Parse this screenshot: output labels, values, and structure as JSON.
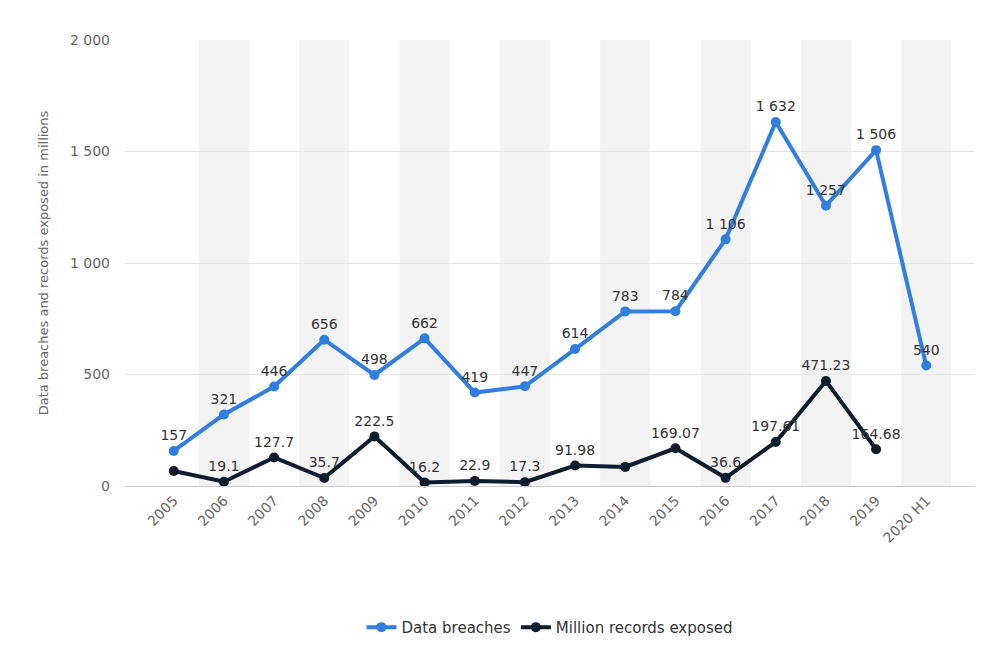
{
  "chart_data": {
    "type": "line",
    "categories": [
      "2005",
      "2006",
      "2007",
      "2008",
      "2009",
      "2010",
      "2011",
      "2012",
      "2013",
      "2014",
      "2015",
      "2016",
      "2017",
      "2018",
      "2019",
      "2020 H1"
    ],
    "series": [
      {
        "name": "Data breaches",
        "color": "#2f7ee0",
        "marker": "circle",
        "line_style": "solid",
        "values": [
          157,
          321,
          446,
          656,
          498,
          662,
          419,
          447,
          614,
          783,
          784,
          1106,
          1632,
          1257,
          1506,
          540
        ],
        "value_labels": [
          "157",
          "321",
          "446",
          "656",
          "498",
          "662",
          "419",
          "447",
          "614",
          "783",
          "784",
          "1 106",
          "1 632",
          "1 257",
          "1 506",
          "540"
        ]
      },
      {
        "name": "Million records exposed",
        "color": "#0e1c30",
        "marker": "circle",
        "line_style": "solid",
        "values": [
          66.9,
          19.1,
          127.7,
          35.7,
          222.5,
          16.2,
          22.9,
          17.3,
          91.98,
          85.61,
          169.07,
          36.6,
          197.61,
          471.23,
          164.68,
          null
        ],
        "value_labels": [
          null,
          "19.1",
          "127.7",
          "35.7",
          "222.5",
          "16.2",
          "22.9",
          "17.3",
          "91.98",
          null,
          "169.07",
          "36.6",
          "197.61",
          "471.23",
          "164.68",
          null
        ]
      }
    ],
    "y_label": "Data breaches and records exposed in millions",
    "ylim": [
      0,
      2000
    ],
    "yticks": [
      0,
      500,
      {
        "value": 1000,
        "label": "1 000"
      },
      {
        "value": 1500,
        "label": "1 500"
      },
      {
        "value": 2000,
        "label": "2 000"
      }
    ],
    "grid": true,
    "legend": "bottom",
    "data_labels": true
  }
}
